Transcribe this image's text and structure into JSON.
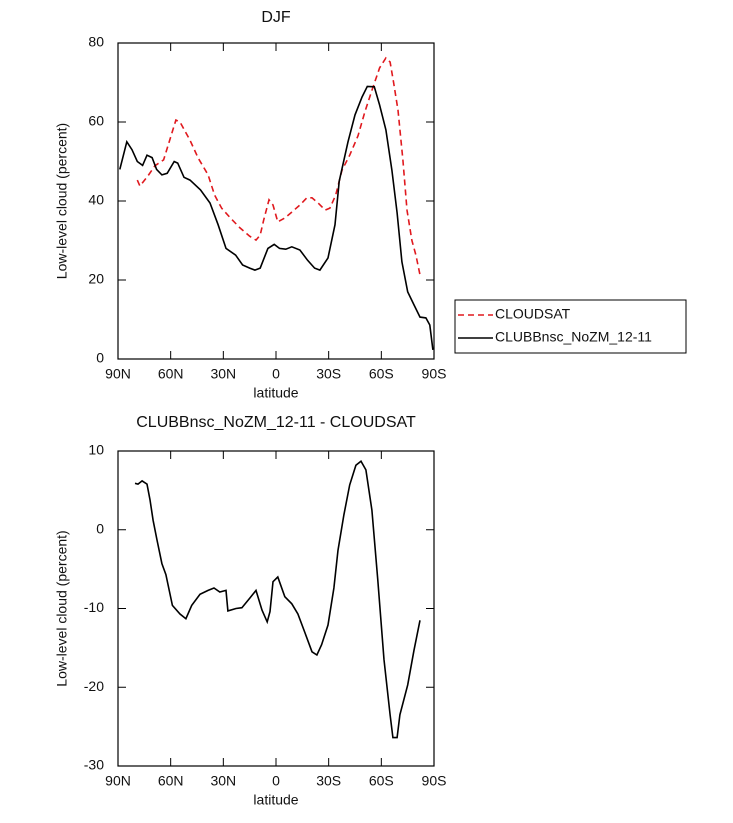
{
  "chart_data": [
    {
      "type": "line",
      "title": "DJF",
      "xlabel": "latitude",
      "ylabel": "Low-level cloud (percent)",
      "xlim": [
        90,
        -90
      ],
      "ylim": [
        0,
        80
      ],
      "xticks": [
        {
          "value": 90,
          "label": "90N"
        },
        {
          "value": 60,
          "label": "60N"
        },
        {
          "value": 30,
          "label": "30N"
        },
        0,
        {
          "value": -30,
          "label": "30S"
        },
        {
          "value": -60,
          "label": "60S"
        },
        {
          "value": -90,
          "label": "90S"
        }
      ],
      "yticks": [
        0,
        20,
        40,
        60,
        80
      ],
      "legend": "right",
      "series": [
        {
          "name": "CLOUDSAT",
          "color": "#e0191e",
          "dash": true,
          "x": [
            79,
            77.5,
            73,
            69,
            64,
            61.5,
            57,
            54.7,
            49,
            44.4,
            38.7,
            35,
            31,
            26,
            20.5,
            15,
            11.4,
            9,
            7,
            4,
            1.7,
            -1,
            -5,
            -9,
            -13.6,
            -17.6,
            -20.5,
            -24,
            -28,
            -30.7,
            -34,
            -37.6,
            -42,
            -46.7,
            -50.6,
            -54.6,
            -59,
            -62.6,
            -65,
            -67,
            -69.5,
            -72.3,
            -74.6,
            -77.4,
            -79.7,
            -82
          ],
          "values": [
            45.3,
            43.8,
            46.3,
            48.9,
            50.4,
            54,
            60.5,
            60,
            55.4,
            50.9,
            46.6,
            41.5,
            38.2,
            35.7,
            33.2,
            31.1,
            30.1,
            31.4,
            35.2,
            40.3,
            39,
            34.7,
            35.7,
            37.2,
            39,
            40.8,
            40.8,
            39.5,
            37.7,
            38.2,
            41.5,
            47.8,
            51.6,
            56.5,
            62.5,
            68,
            73.7,
            76.2,
            75.2,
            70,
            63,
            50.4,
            37.7,
            30,
            26.3,
            21.3
          ]
        },
        {
          "name": "CLUBBnsc_NoZM_12-11",
          "color": "#000000",
          "dash": false,
          "x": [
            89,
            85,
            82,
            79,
            76,
            73.5,
            70.6,
            68,
            65,
            62,
            58,
            56,
            52.4,
            49,
            43,
            37.6,
            33,
            28.5,
            23,
            19,
            15,
            12,
            9,
            4.6,
            1,
            -2,
            -5.6,
            -9,
            -13.6,
            -18,
            -22,
            -25,
            -29.6,
            -33.6,
            -36,
            -41,
            -45,
            -49,
            -52,
            -56,
            -59,
            -62.6,
            -66,
            -69,
            -71.7,
            -75,
            -78.6,
            -82,
            -85.4,
            -87.6,
            -89.4
          ],
          "values": [
            48,
            55,
            53,
            50,
            49,
            51.6,
            51,
            48,
            46.6,
            47,
            50,
            49.6,
            46,
            45.3,
            42.8,
            39.5,
            34,
            28,
            26.3,
            23.8,
            23,
            22.5,
            23,
            28,
            29,
            28,
            27.8,
            28.4,
            27.6,
            25,
            23,
            22.5,
            25.6,
            34,
            45,
            55,
            61.8,
            66.3,
            69,
            68.9,
            64.3,
            58,
            47.8,
            37,
            24.6,
            17,
            13.7,
            10.6,
            10.4,
            8.6,
            2.3
          ]
        }
      ]
    },
    {
      "type": "line",
      "title": "CLUBBnsc_NoZM_12-11 - CLOUDSAT",
      "xlabel": "latitude",
      "ylabel": "Low-level cloud (percent)",
      "xlim": [
        90,
        -90
      ],
      "ylim": [
        -30,
        10
      ],
      "xticks": [
        {
          "value": 90,
          "label": "90N"
        },
        {
          "value": 60,
          "label": "60N"
        },
        {
          "value": 30,
          "label": "30N"
        },
        0,
        {
          "value": -30,
          "label": "30S"
        },
        {
          "value": -60,
          "label": "60S"
        },
        {
          "value": -90,
          "label": "90S"
        }
      ],
      "yticks": [
        -30,
        -20,
        -10,
        0,
        10
      ],
      "series": [
        {
          "color": "#000000",
          "dash": false,
          "x": [
            80.3,
            78.6,
            76.3,
            73.5,
            71.8,
            70,
            67.8,
            65,
            62.7,
            59,
            54.7,
            51.3,
            48,
            43.3,
            38.7,
            35.3,
            32,
            28.5,
            27.4,
            22.8,
            19.4,
            15,
            11.4,
            8,
            5,
            3.4,
            1.7,
            -1,
            -5,
            -9,
            -12.5,
            -16.5,
            -20.5,
            -23.3,
            -26,
            -29.6,
            -33,
            -35.3,
            -38.7,
            -42,
            -45.5,
            -48.4,
            -51.2,
            -54.6,
            -58,
            -61.5,
            -65,
            -66.6,
            -69,
            -70.6,
            -75,
            -78.6,
            -82
          ],
          "values": [
            5.9,
            5.8,
            6.2,
            5.8,
            3.8,
            1.2,
            -1.3,
            -4.3,
            -5.7,
            -9.6,
            -10.7,
            -11.3,
            -9.6,
            -8.2,
            -7.7,
            -7.4,
            -7.9,
            -7.7,
            -10.3,
            -10,
            -9.9,
            -8.7,
            -7.7,
            -10.2,
            -11.7,
            -10.4,
            -6.6,
            -6,
            -8.5,
            -9.4,
            -10.7,
            -13.1,
            -15.5,
            -15.9,
            -14.6,
            -12.1,
            -7.4,
            -2.6,
            1.9,
            5.7,
            8.2,
            8.7,
            7.6,
            2.5,
            -6.4,
            -16.5,
            -23.5,
            -26.4,
            -26.4,
            -23.5,
            -19.7,
            -15.3,
            -11.5
          ]
        }
      ]
    }
  ]
}
